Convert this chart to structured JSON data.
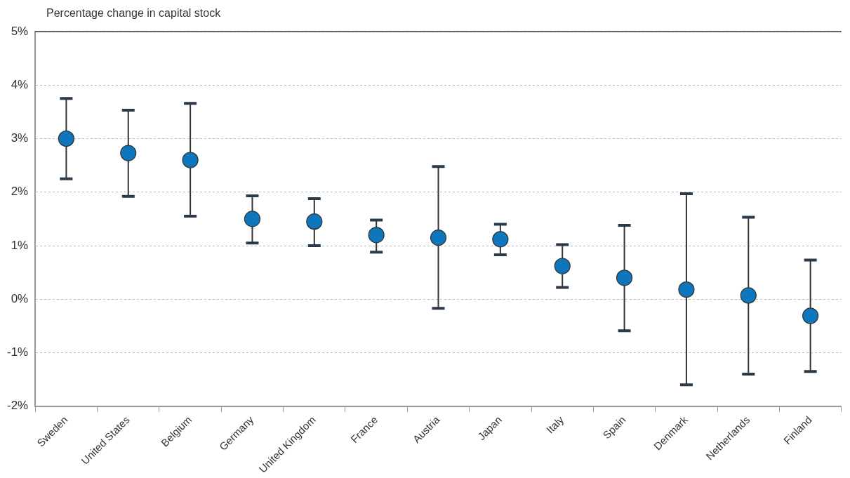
{
  "chart_data": {
    "type": "scatter",
    "ylabel": "Percentage change in capital stock",
    "categories": [
      "Sweden",
      "United States",
      "Belgium",
      "Germany",
      "United Kingdom",
      "France",
      "Austria",
      "Japan",
      "Italy",
      "Spain",
      "Denmark",
      "Netherlands",
      "Finland"
    ],
    "values": [
      3.0,
      2.73,
      2.6,
      1.5,
      1.45,
      1.2,
      1.15,
      1.12,
      0.62,
      0.4,
      0.18,
      0.07,
      -0.31
    ],
    "errors": [
      [
        2.25,
        3.75
      ],
      [
        1.92,
        3.53
      ],
      [
        1.55,
        3.66
      ],
      [
        1.05,
        1.93
      ],
      [
        1.0,
        1.88
      ],
      [
        0.88,
        1.48
      ],
      [
        -0.17,
        2.48
      ],
      [
        0.83,
        1.4
      ],
      [
        0.22,
        1.02
      ],
      [
        -0.59,
        1.38
      ],
      [
        -1.6,
        1.97
      ],
      [
        -1.4,
        1.53
      ],
      [
        -1.35,
        0.73
      ]
    ],
    "color": "#0e76bc",
    "ylim": [
      -2,
      5
    ],
    "yticks": [
      {
        "value": -2,
        "label": "-2%"
      },
      {
        "value": -1,
        "label": "-1%"
      },
      {
        "value": 0,
        "label": "0%"
      },
      {
        "value": 1,
        "label": "1%"
      },
      {
        "value": 2,
        "label": "2%"
      },
      {
        "value": 3,
        "label": "3%"
      },
      {
        "value": 4,
        "label": "4%"
      },
      {
        "value": 5,
        "label": "5%"
      }
    ],
    "grid": "y",
    "marker": "circle",
    "legend": false
  }
}
